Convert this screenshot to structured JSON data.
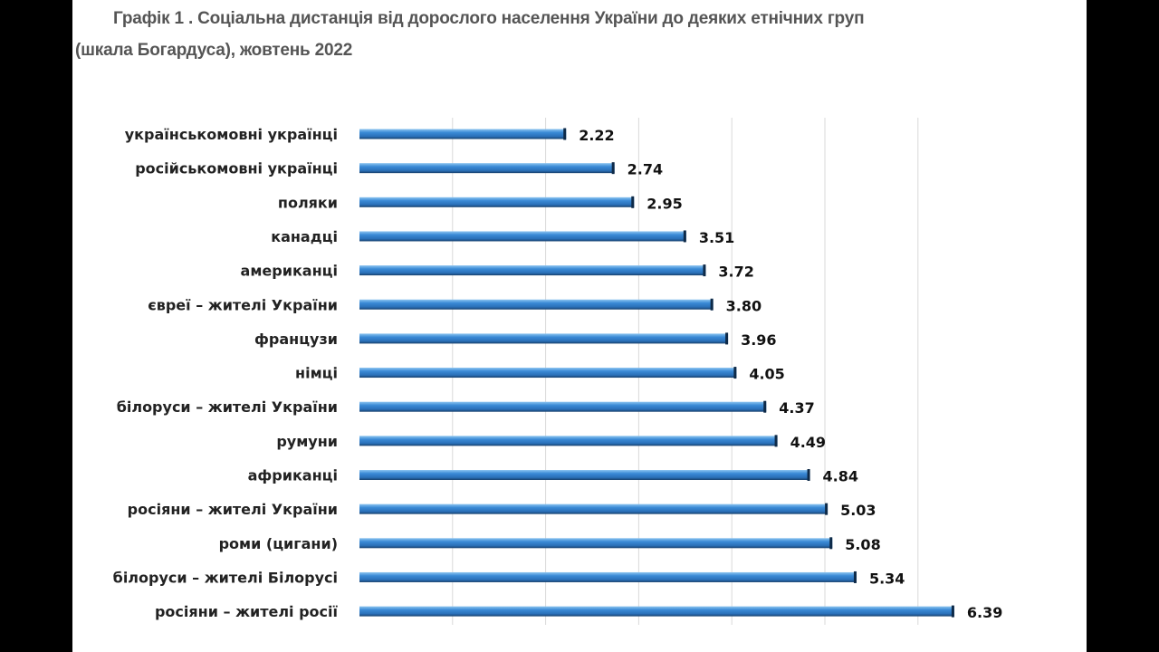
{
  "chart_data": {
    "type": "bar",
    "orientation": "horizontal",
    "title": "Графік 1 . Соціальна дистанція від дорослого населення України до деяких етнічних груп",
    "subtitle": "(шкала Богардуса), жовтень 2022",
    "xlabel": "",
    "ylabel": "",
    "xlim": [
      0,
      7
    ],
    "grid": true,
    "categories": [
      "українськомовні українці",
      "російськомовні українці",
      "поляки",
      "канадці",
      "американці",
      "євреї – жителі України",
      "французи",
      "німці",
      "білоруси – жителі України",
      "румуни",
      "африканці",
      "росіяни – жителі України",
      "роми (цигани)",
      "білоруси – жителі Білорусі",
      "росіяни – жителі росії"
    ],
    "values": [
      2.22,
      2.74,
      2.95,
      3.51,
      3.72,
      3.8,
      3.96,
      4.05,
      4.37,
      4.49,
      4.84,
      5.03,
      5.08,
      5.34,
      6.39
    ],
    "value_labels": [
      "2.22",
      "2.74",
      "2.95",
      "3.51",
      "3.72",
      "3.80",
      "3.96",
      "4.05",
      "4.37",
      "4.49",
      "4.84",
      "5.03",
      "5.08",
      "5.34",
      "6.39"
    ],
    "colors": {
      "bar": "#3a86d0",
      "bar_dark": "#1a4f86",
      "grid": "#d9d9d9"
    }
  }
}
